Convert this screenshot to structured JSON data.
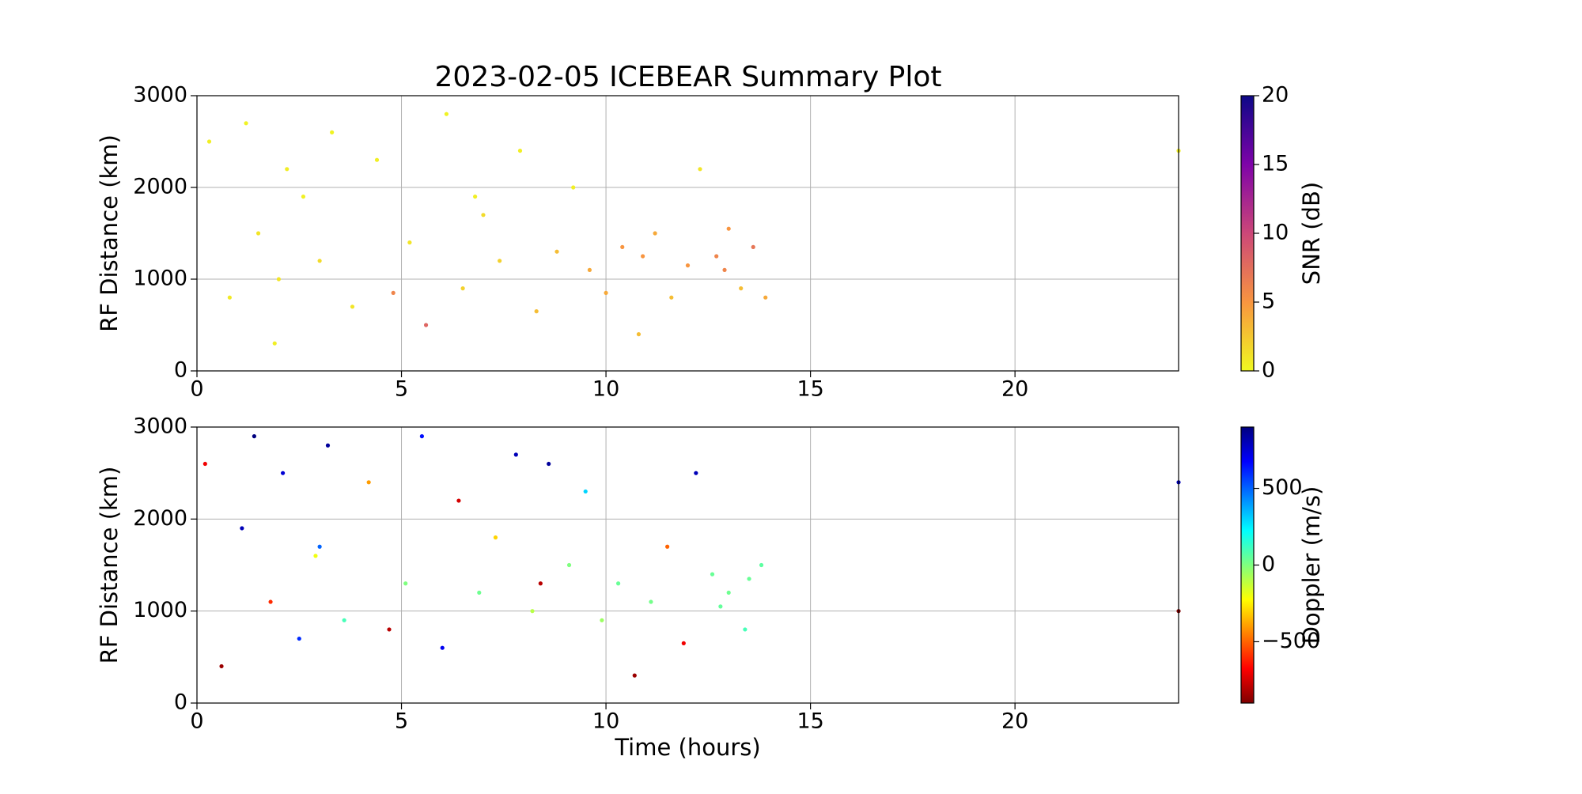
{
  "chart_data": [
    {
      "type": "scatter",
      "title": "2023-02-05 ICEBEAR Summary Plot",
      "ylabel": "RF Distance (km)",
      "x": [
        0.3,
        0.8,
        1.2,
        1.5,
        1.9,
        2.2,
        2.6,
        3.0,
        3.3,
        3.8,
        4.4,
        4.8,
        5.2,
        5.6,
        6.1,
        6.5,
        7.0,
        7.4,
        7.9,
        8.3,
        8.8,
        9.2,
        9.6,
        10.0,
        10.4,
        10.8,
        11.2,
        11.6,
        12.0,
        12.3,
        12.7,
        13.0,
        13.3,
        13.6,
        13.9,
        24.0,
        2.0,
        6.8,
        10.9,
        12.9
      ],
      "y": [
        2500,
        800,
        2700,
        1500,
        300,
        2200,
        1900,
        1200,
        2600,
        700,
        2300,
        850,
        1400,
        500,
        2800,
        900,
        1700,
        1200,
        2400,
        650,
        1300,
        2000,
        1100,
        850,
        1350,
        400,
        1500,
        800,
        1150,
        2200,
        1250,
        1550,
        900,
        1350,
        800,
        2400,
        1000,
        1900,
        1250,
        1100
      ],
      "c": [
        0.5,
        0.8,
        0.3,
        1,
        0.5,
        0.6,
        0.4,
        1.5,
        0.3,
        1,
        0.5,
        6,
        1,
        8,
        0.3,
        2,
        1.5,
        2,
        0.5,
        3,
        3,
        0.5,
        4,
        4,
        5,
        3,
        4,
        3,
        5,
        1,
        6,
        5,
        3,
        7,
        4,
        0.5,
        1,
        0.5,
        5,
        6
      ],
      "xlim": [
        0,
        24
      ],
      "ylim": [
        0,
        3000
      ],
      "xticks": [
        0,
        5,
        10,
        15,
        20
      ],
      "yticks": [
        0,
        1000,
        2000,
        3000
      ],
      "grid": true,
      "colorbar": {
        "label": "SNR (dB)",
        "colormap": "plasma_r",
        "lim": [
          0,
          20
        ],
        "ticks": [
          0,
          5,
          10,
          15,
          20
        ]
      }
    },
    {
      "type": "scatter",
      "xlabel": "Time (hours)",
      "ylabel": "RF Distance (km)",
      "x": [
        0.2,
        0.6,
        1.1,
        1.4,
        1.8,
        2.1,
        2.5,
        2.9,
        3.2,
        3.6,
        4.2,
        4.7,
        5.1,
        5.5,
        6.0,
        6.4,
        6.9,
        7.3,
        7.8,
        8.2,
        8.6,
        9.1,
        9.5,
        9.9,
        10.3,
        10.7,
        11.1,
        11.5,
        11.9,
        12.2,
        12.6,
        13.0,
        13.4,
        13.8,
        24.0,
        24.0,
        3.0,
        8.4,
        12.8,
        13.5
      ],
      "y": [
        2600,
        400,
        1900,
        2900,
        1100,
        2500,
        700,
        1600,
        2800,
        900,
        2400,
        800,
        1300,
        2900,
        600,
        2200,
        1200,
        1800,
        2700,
        1000,
        2600,
        1500,
        2300,
        900,
        1300,
        300,
        1100,
        1700,
        650,
        2500,
        1400,
        1200,
        800,
        1500,
        2400,
        1000,
        1700,
        1300,
        1050,
        1350
      ],
      "c": [
        -700,
        -850,
        800,
        900,
        -600,
        750,
        600,
        -200,
        850,
        100,
        -400,
        -800,
        0,
        650,
        700,
        -750,
        30,
        -300,
        800,
        -100,
        850,
        0,
        300,
        -50,
        40,
        -850,
        20,
        -500,
        -700,
        800,
        40,
        30,
        100,
        60,
        800,
        -900,
        500,
        -800,
        50,
        40
      ],
      "xlim": [
        0,
        24
      ],
      "ylim": [
        0,
        3000
      ],
      "xticks": [
        0,
        5,
        10,
        15,
        20
      ],
      "yticks": [
        0,
        1000,
        2000,
        3000
      ],
      "grid": true,
      "colorbar": {
        "label": "Doppler (m/s)",
        "colormap": "jet_r",
        "lim": [
          -900,
          900
        ],
        "ticks": [
          {
            "value": -500,
            "label": "−500"
          },
          0,
          500
        ]
      }
    }
  ]
}
